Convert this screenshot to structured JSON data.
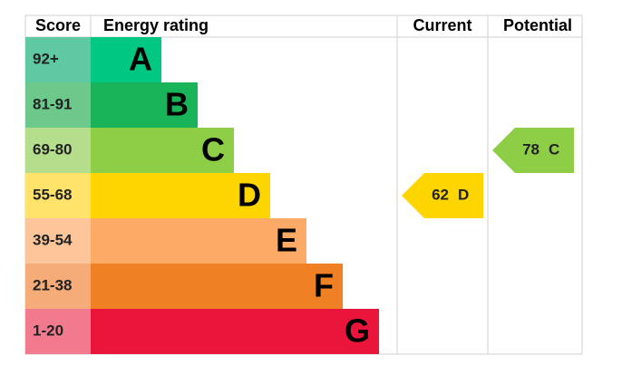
{
  "header": {
    "score": "Score",
    "rating": "Energy rating",
    "current": "Current",
    "potential": "Potential"
  },
  "bands": [
    {
      "score": "92+",
      "letter": "A",
      "color": "#00c781",
      "score_color": "#5fc9a3"
    },
    {
      "score": "81-91",
      "letter": "B",
      "color": "#19b459",
      "score_color": "#6cc98b"
    },
    {
      "score": "69-80",
      "letter": "C",
      "color": "#8dce46",
      "score_color": "#b4de8b"
    },
    {
      "score": "55-68",
      "letter": "D",
      "color": "#ffd500",
      "score_color": "#ffe36a"
    },
    {
      "score": "39-54",
      "letter": "E",
      "color": "#fcaa65",
      "score_color": "#fdc69a"
    },
    {
      "score": "21-38",
      "letter": "F",
      "color": "#ef8023",
      "score_color": "#f5ac78"
    },
    {
      "score": "1-20",
      "letter": "G",
      "color": "#e9153b",
      "score_color": "#f27a8f"
    }
  ],
  "current": {
    "value": 62,
    "letter": "D"
  },
  "potential": {
    "value": 78,
    "letter": "C"
  }
}
